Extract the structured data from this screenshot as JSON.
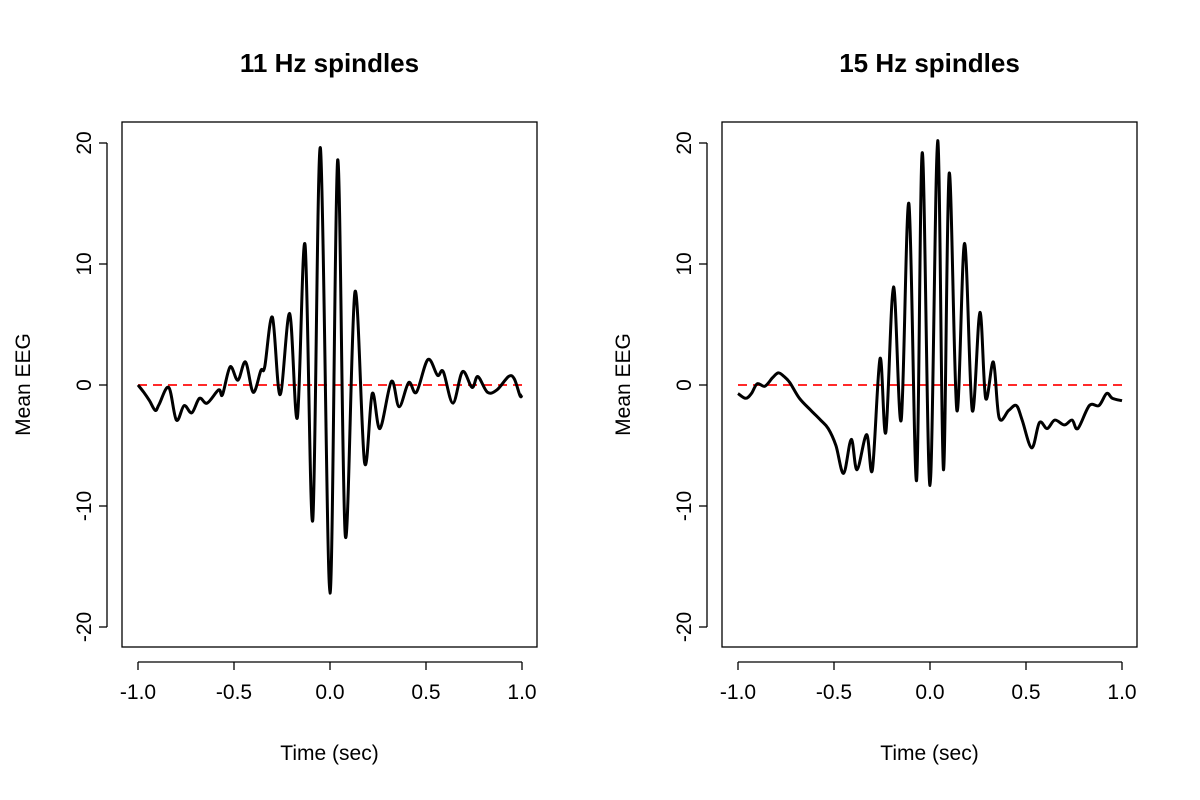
{
  "chart_data": [
    {
      "type": "line",
      "title": "11 Hz spindles",
      "xlabel": "Time (sec)",
      "ylabel": "Mean EEG",
      "xlim": [
        -1.0,
        1.0
      ],
      "ylim": [
        -20,
        20
      ],
      "xticks": [
        "-1.0",
        "-0.5",
        "0.0",
        "0.5",
        "1.0"
      ],
      "xtick_values": [
        -1.0,
        -0.5,
        0.0,
        0.5,
        1.0
      ],
      "yticks": [
        "-20",
        "-10",
        "0",
        "10",
        "20"
      ],
      "ytick_values": [
        -20,
        -10,
        0,
        10,
        20
      ],
      "reference_line": {
        "y": 0,
        "color": "#ff2a2a",
        "style": "dashed"
      },
      "series": [
        {
          "name": "Mean EEG",
          "color": "#000000",
          "x": [
            -1.0,
            -0.97,
            -0.94,
            -0.91,
            -0.89,
            -0.84,
            -0.8,
            -0.76,
            -0.72,
            -0.68,
            -0.64,
            -0.58,
            -0.56,
            -0.52,
            -0.48,
            -0.44,
            -0.4,
            -0.36,
            -0.34,
            -0.3,
            -0.26,
            -0.21,
            -0.17,
            -0.13,
            -0.09,
            -0.05,
            0.0,
            0.04,
            0.08,
            0.13,
            0.18,
            0.22,
            0.26,
            0.32,
            0.36,
            0.41,
            0.45,
            0.51,
            0.56,
            0.59,
            0.64,
            0.69,
            0.74,
            0.77,
            0.82,
            0.87,
            0.93,
            0.96,
            0.99,
            1.0
          ],
          "y": [
            0,
            -0.6,
            -1.3,
            -2.1,
            -1.6,
            -0.2,
            -2.9,
            -1.7,
            -2.3,
            -1.1,
            -1.5,
            -0.4,
            -0.8,
            1.5,
            0.4,
            1.9,
            -0.6,
            1.2,
            1.5,
            5.6,
            -0.8,
            5.9,
            -2.7,
            11.6,
            -11.2,
            19.6,
            -17.2,
            18.6,
            -12.5,
            7.7,
            -6.4,
            -0.7,
            -3.6,
            0.3,
            -1.8,
            0.2,
            -0.6,
            2.1,
            0.8,
            1.1,
            -1.5,
            1.1,
            -0.2,
            0.7,
            -0.6,
            -0.4,
            0.7,
            0.5,
            -0.9,
            -0.8
          ]
        }
      ]
    },
    {
      "type": "line",
      "title": "15 Hz spindles",
      "xlabel": "Time (sec)",
      "ylabel": "Mean EEG",
      "xlim": [
        -1.0,
        1.0
      ],
      "ylim": [
        -20,
        20
      ],
      "xticks": [
        "-1.0",
        "-0.5",
        "0.0",
        "0.5",
        "1.0"
      ],
      "xtick_values": [
        -1.0,
        -0.5,
        0.0,
        0.5,
        1.0
      ],
      "yticks": [
        "-20",
        "-10",
        "0",
        "10",
        "20"
      ],
      "ytick_values": [
        -20,
        -10,
        0,
        10,
        20
      ],
      "reference_line": {
        "y": 0,
        "color": "#ff2a2a",
        "style": "dashed"
      },
      "series": [
        {
          "name": "Mean EEG",
          "color": "#000000",
          "x": [
            -1.0,
            -0.96,
            -0.93,
            -0.9,
            -0.86,
            -0.82,
            -0.79,
            -0.76,
            -0.73,
            -0.68,
            -0.62,
            -0.57,
            -0.53,
            -0.49,
            -0.45,
            -0.41,
            -0.38,
            -0.33,
            -0.3,
            -0.26,
            -0.23,
            -0.19,
            -0.15,
            -0.11,
            -0.07,
            -0.04,
            0.0,
            0.04,
            0.07,
            0.1,
            0.14,
            0.18,
            0.22,
            0.26,
            0.29,
            0.33,
            0.36,
            0.41,
            0.45,
            0.48,
            0.53,
            0.57,
            0.61,
            0.65,
            0.7,
            0.74,
            0.77,
            0.83,
            0.88,
            0.92,
            0.95,
            1.0
          ],
          "y": [
            -0.7,
            -1.1,
            -0.7,
            0.1,
            -0.1,
            0.6,
            1.0,
            0.7,
            0.2,
            -1.1,
            -2.1,
            -2.9,
            -3.6,
            -5.0,
            -7.3,
            -4.5,
            -7.0,
            -4.1,
            -7.0,
            2.2,
            -3.9,
            8.1,
            -2.9,
            15.0,
            -7.9,
            19.2,
            -8.3,
            20.2,
            -7.0,
            17.5,
            -2.1,
            11.7,
            -2.1,
            6.0,
            -1.1,
            1.9,
            -2.7,
            -2.1,
            -1.7,
            -2.9,
            -5.2,
            -3.1,
            -3.6,
            -2.9,
            -3.3,
            -2.9,
            -3.6,
            -1.7,
            -1.7,
            -0.7,
            -1.1,
            -1.3
          ]
        }
      ]
    }
  ]
}
